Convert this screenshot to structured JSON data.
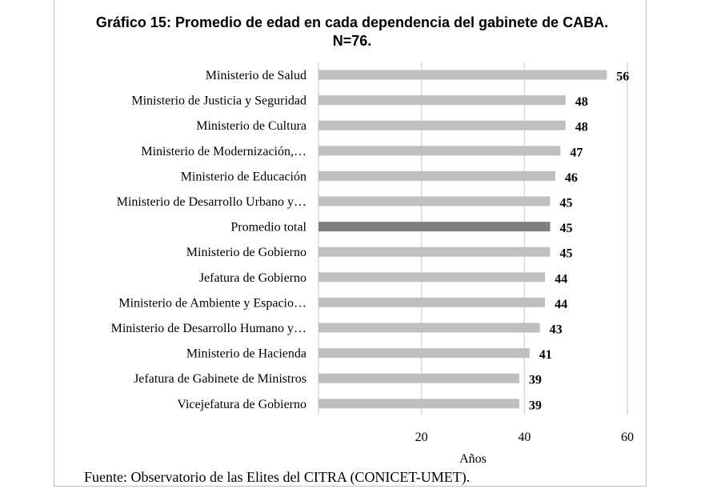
{
  "chart_data": {
    "type": "bar",
    "orientation": "horizontal",
    "title": "Gráfico 15: Promedio de edad en cada dependencia del gabinete de CABA. N=76.",
    "categories": [
      "Ministerio de Salud",
      "Ministerio de Justicia y Seguridad",
      "Ministerio de Cultura",
      "Ministerio de Modernización,…",
      "Ministerio de Educación",
      "Ministerio de Desarrollo Urbano y…",
      "Promedio total",
      "Ministerio de Gobierno",
      "Jefatura de Gobierno",
      "Ministerio de Ambiente y Espacio…",
      "Ministerio de Desarrollo Humano y…",
      "Ministerio de Hacienda",
      "Jefatura de Gabinete de Ministros",
      "Vicejefatura de Gobierno"
    ],
    "values": [
      56,
      48,
      48,
      47,
      46,
      45,
      45,
      45,
      44,
      44,
      43,
      41,
      39,
      39
    ],
    "highlight_category": "Promedio total",
    "colors": {
      "bar": "#bfbfbf",
      "highlight": "#7f7f7f",
      "grid": "#d9d9d9"
    },
    "xlabel": "Años",
    "ylabel": "",
    "xlim": [
      0,
      60
    ],
    "xticks": [
      20,
      40,
      60
    ],
    "grid": true,
    "legend": "none"
  },
  "source": "Fuente: Observatorio de las Elites del CITRA  (CONICET-UMET)."
}
